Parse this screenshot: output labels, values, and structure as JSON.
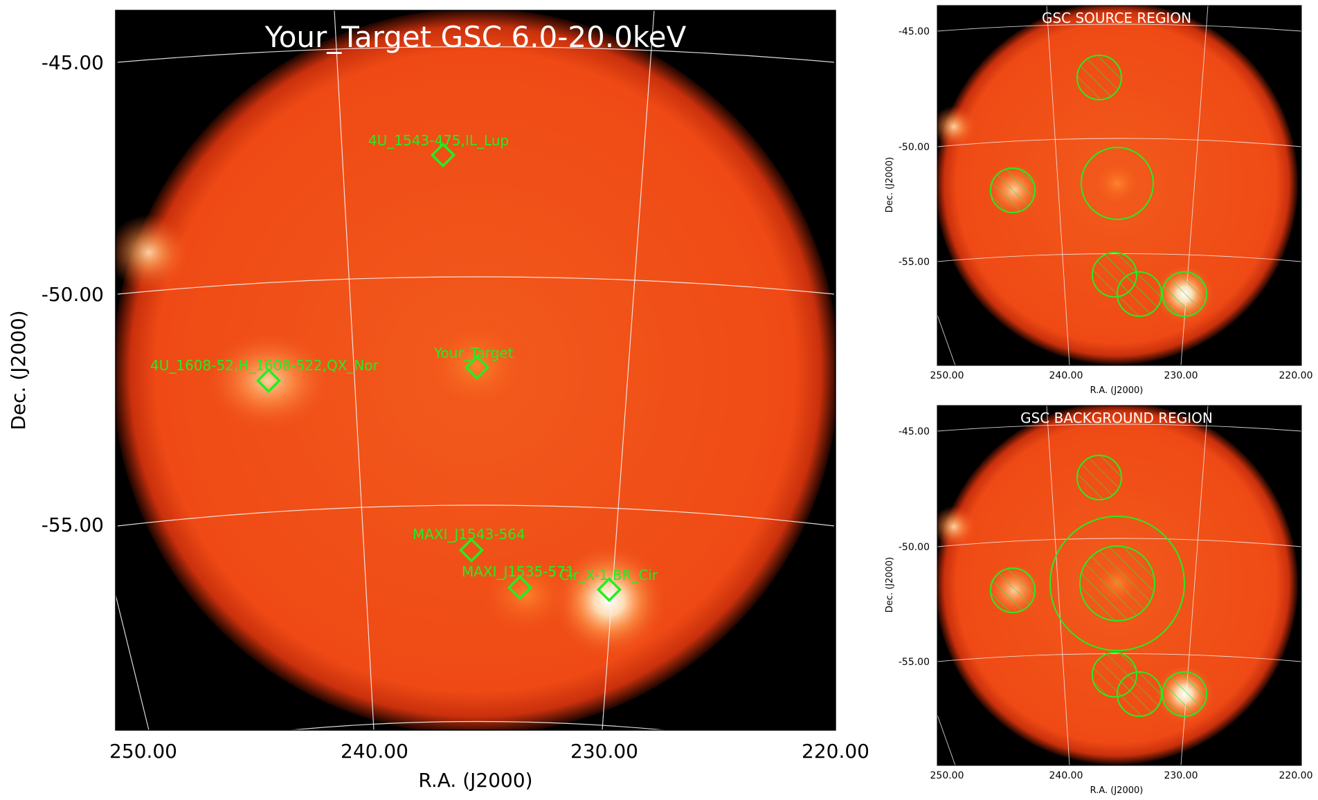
{
  "main_panel": {
    "title": "Your_Target GSC 6.0-20.0keV",
    "xlabel": "R.A. (J2000)",
    "ylabel": "Dec. (J2000)",
    "x_ticks": [
      "250.00",
      "240.00",
      "230.00",
      "220.00"
    ],
    "y_ticks": [
      "-45.00",
      "-50.00",
      "-55.00"
    ],
    "sources": [
      {
        "name": "4U_1543-475,IL_Lup"
      },
      {
        "name": "Your_Target"
      },
      {
        "name": "4U_1608-52,H_1608-522,QX_Nor"
      },
      {
        "name": "MAXI_J1543-564"
      },
      {
        "name": "MAXI_J1535-571"
      },
      {
        "name": "Cir_X-1,BR_Cir"
      }
    ]
  },
  "source_panel": {
    "title": "GSC SOURCE REGION",
    "xlabel": "R.A. (J2000)",
    "ylabel": "Dec. (J2000)",
    "x_ticks": [
      "250.00",
      "240.00",
      "230.00",
      "220.00"
    ],
    "y_ticks": [
      "-45.00",
      "-50.00",
      "-55.00"
    ]
  },
  "background_panel": {
    "title": "GSC BACKGROUND REGION",
    "xlabel": "R.A. (J2000)",
    "ylabel": "Dec. (J2000)",
    "x_ticks": [
      "250.00",
      "240.00",
      "230.00",
      "220.00"
    ],
    "y_ticks": [
      "-45.00",
      "-50.00",
      "-55.00"
    ]
  },
  "colors": {
    "marker": "#22ee22",
    "grid": "#f2f2f2",
    "disk": "#f04a14",
    "background": "#000000"
  }
}
